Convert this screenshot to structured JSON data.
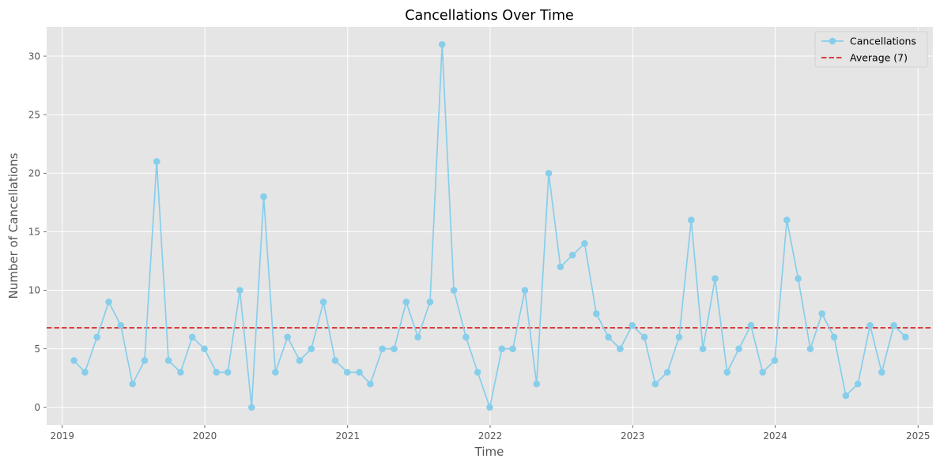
{
  "chart_data": {
    "type": "line",
    "title": "Cancellations Over Time",
    "xlabel": "Time",
    "ylabel": "Number of Cancellations",
    "x_ticks": [
      "2019",
      "2020",
      "2021",
      "2022",
      "2023",
      "2024",
      "2025"
    ],
    "y_ticks": [
      0,
      5,
      10,
      15,
      20,
      25,
      30
    ],
    "xlim": [
      "2018-11-22",
      "2025-02-08"
    ],
    "ylim": [
      -1.5,
      32.5
    ],
    "grid": true,
    "legend_position": "top-right",
    "colors": {
      "series": "#87CEEB",
      "average": "#D62728",
      "plot_background": "#E5E5E5",
      "grid": "#FFFFFF"
    },
    "x": [
      "2019-01-31",
      "2019-02-28",
      "2019-03-31",
      "2019-04-30",
      "2019-05-31",
      "2019-06-30",
      "2019-07-31",
      "2019-08-31",
      "2019-09-30",
      "2019-10-31",
      "2019-11-30",
      "2019-12-31",
      "2020-01-31",
      "2020-02-29",
      "2020-03-31",
      "2020-04-30",
      "2020-05-31",
      "2020-06-30",
      "2020-07-31",
      "2020-08-31",
      "2020-09-30",
      "2020-10-31",
      "2020-11-30",
      "2020-12-31",
      "2021-01-31",
      "2021-02-28",
      "2021-03-31",
      "2021-04-30",
      "2021-05-31",
      "2021-06-30",
      "2021-07-31",
      "2021-08-31",
      "2021-09-30",
      "2021-10-31",
      "2021-11-30",
      "2021-12-31",
      "2022-01-31",
      "2022-02-28",
      "2022-03-31",
      "2022-04-30",
      "2022-05-31",
      "2022-06-30",
      "2022-07-31",
      "2022-08-31",
      "2022-09-30",
      "2022-10-31",
      "2022-11-30",
      "2022-12-31",
      "2023-01-31",
      "2023-02-28",
      "2023-03-31",
      "2023-04-30",
      "2023-05-31",
      "2023-06-30",
      "2023-07-31",
      "2023-08-31",
      "2023-09-30",
      "2023-10-31",
      "2023-11-30",
      "2023-12-31",
      "2024-01-31",
      "2024-02-29",
      "2024-03-31",
      "2024-04-30",
      "2024-05-31",
      "2024-06-30",
      "2024-07-31",
      "2024-08-31",
      "2024-09-30",
      "2024-10-31",
      "2024-11-30"
    ],
    "series": [
      {
        "name": "Cancellations",
        "values": [
          4,
          3,
          6,
          9,
          7,
          2,
          4,
          21,
          4,
          3,
          6,
          5,
          3,
          3,
          10,
          0,
          18,
          3,
          6,
          4,
          5,
          9,
          4,
          3,
          3,
          2,
          5,
          5,
          9,
          6,
          9,
          31,
          10,
          6,
          3,
          0,
          5,
          5,
          10,
          2,
          20,
          12,
          13,
          14,
          8,
          6,
          5,
          7,
          6,
          2,
          3,
          6,
          16,
          5,
          11,
          3,
          5,
          7,
          3,
          4,
          16,
          11,
          5,
          8,
          6,
          1,
          2,
          7,
          3,
          7,
          6
        ]
      }
    ],
    "average": {
      "label": "Average (7)",
      "value": 6.8
    }
  }
}
